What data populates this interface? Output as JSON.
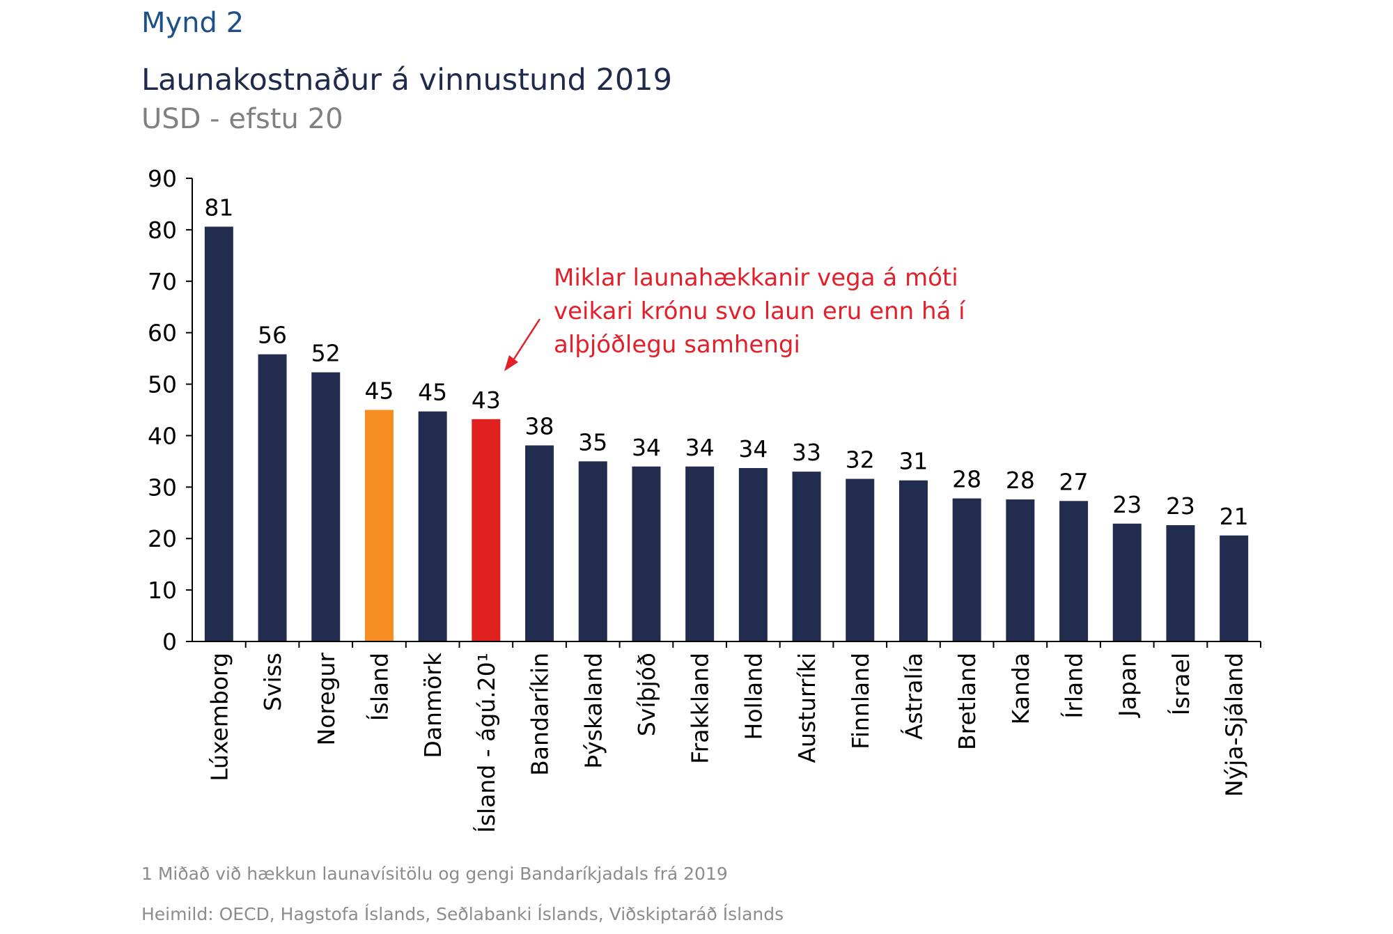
{
  "figure_label": "Mynd 2",
  "footnotes": [
    "1 Miðað við hækkun launavísitölu og gengi Bandaríkjadals frá 2019",
    "Heimild: OECD, Hagstofa Íslands, Seðlabanki Íslands, Viðskiptaráð Íslands"
  ],
  "annotation": {
    "text": "Miklar launahækkanir vega á móti veikari krónu svo laun eru enn há í alþjóðlegu samhengi",
    "color": "#e3202a"
  },
  "colors": {
    "default_bar": "#222c4f",
    "highlight_orange": "#f68e23",
    "highlight_red": "#e0201f"
  },
  "chart_data": {
    "type": "bar",
    "title": "Launakostnaður á vinnustund 2019",
    "subtitle": "USD - efstu 20",
    "categories": [
      "Lúxemborg",
      "Sviss",
      "Noregur",
      "Ísland",
      "Danmörk",
      "Ísland - ágú.20¹",
      "Bandaríkin",
      "Þýskaland",
      "Svíþjóð",
      "Frakkland",
      "Holland",
      "Austurríki",
      "Finnland",
      "Ástralía",
      "Bretland",
      "Kanda",
      "Írland",
      "Japan",
      "Ísrael",
      "Nýja-Sjáland"
    ],
    "values": [
      80.6,
      55.8,
      52.3,
      45.0,
      44.7,
      43.2,
      38.1,
      35.0,
      34.0,
      34.0,
      33.7,
      33.0,
      31.6,
      31.3,
      27.8,
      27.6,
      27.3,
      22.9,
      22.6,
      20.6
    ],
    "data_labels": [
      "81",
      "56",
      "52",
      "45",
      "45",
      "43",
      "38",
      "35",
      "34",
      "34",
      "34",
      "33",
      "32",
      "31",
      "28",
      "28",
      "27",
      "23",
      "23",
      "21"
    ],
    "bar_colors": [
      "#222c4f",
      "#222c4f",
      "#222c4f",
      "#f68e23",
      "#222c4f",
      "#e0201f",
      "#222c4f",
      "#222c4f",
      "#222c4f",
      "#222c4f",
      "#222c4f",
      "#222c4f",
      "#222c4f",
      "#222c4f",
      "#222c4f",
      "#222c4f",
      "#222c4f",
      "#222c4f",
      "#222c4f",
      "#222c4f"
    ],
    "yticks": [
      "0",
      "10",
      "20",
      "30",
      "40",
      "50",
      "60",
      "70",
      "80",
      "90"
    ],
    "ylim": [
      0,
      90
    ],
    "xlabel": "",
    "ylabel": "",
    "grid": false,
    "legend": "none"
  }
}
